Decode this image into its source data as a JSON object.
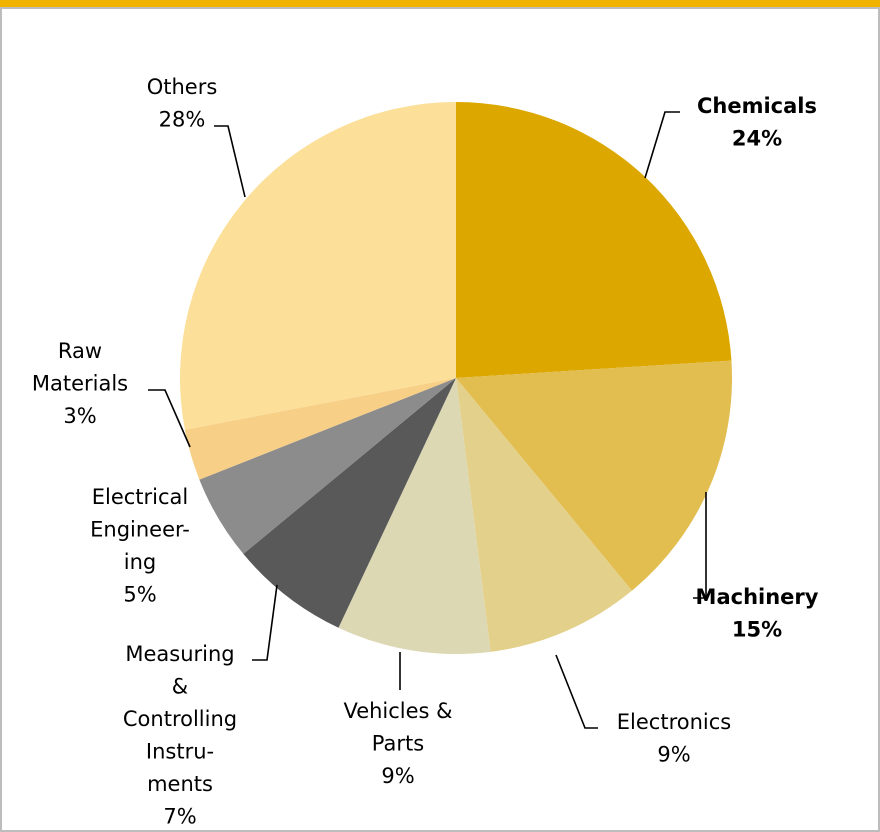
{
  "chart_data": {
    "type": "pie",
    "categories": [
      "Chemicals",
      "Machinery",
      "Electronics",
      "Vehicles &\nParts",
      "Measuring\n&\nControlling\nInstru-\nments",
      "Electrical\nEngineer-\ning",
      "Raw\nMaterials",
      "Others"
    ],
    "values": [
      24,
      15,
      9,
      9,
      7,
      5,
      3,
      28
    ],
    "value_labels": [
      "24%",
      "15%",
      "9%",
      "9%",
      "7%",
      "5%",
      "3%",
      "28%"
    ],
    "colors": [
      "#dca800",
      "#e2bd4f",
      "#e3d08a",
      "#ddd8b4",
      "#595959",
      "#8c8c8c",
      "#f8cf86",
      "#fcdf98"
    ]
  }
}
